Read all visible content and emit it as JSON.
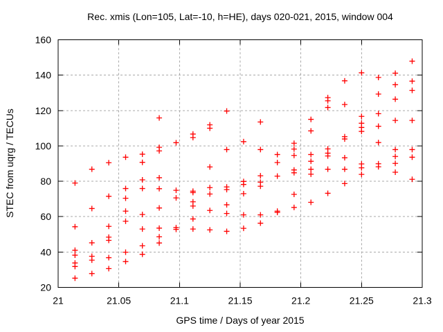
{
  "chart_data": {
    "type": "scatter",
    "title": "Rec. xmis (Lon=105, Lat=-10, h=HE), days 020-021, 2015, window 004",
    "xlabel": "GPS time / Days of year 2015",
    "ylabel": "STEC from uqrg / TECUs",
    "xlim": [
      21.0,
      21.3
    ],
    "ylim": [
      20,
      160
    ],
    "x_ticks": [
      21.0,
      21.05,
      21.1,
      21.15,
      21.2,
      21.25,
      21.3
    ],
    "x_tick_labels": [
      "21",
      "21.05",
      "21.1",
      "21.15",
      "21.2",
      "21.25",
      "21.3"
    ],
    "y_ticks": [
      20,
      40,
      60,
      80,
      100,
      120,
      140,
      160
    ],
    "y_tick_labels": [
      "20",
      "40",
      "60",
      "80",
      "100",
      "120",
      "140",
      "160"
    ],
    "grid": true,
    "legend": "none",
    "marker_shape": "plus",
    "marker_color": "#ff0000",
    "grid_color": "#a8a8a8",
    "border_color": "#000000",
    "points": [
      [
        21.0139,
        79.0
      ],
      [
        21.0139,
        54.3
      ],
      [
        21.0139,
        41.0
      ],
      [
        21.0139,
        38.2
      ],
      [
        21.0139,
        33.8
      ],
      [
        21.0139,
        31.8
      ],
      [
        21.0139,
        25.2
      ],
      [
        21.0278,
        86.8
      ],
      [
        21.0278,
        64.6
      ],
      [
        21.0278,
        45.2
      ],
      [
        21.0278,
        37.6
      ],
      [
        21.0278,
        35.4
      ],
      [
        21.0278,
        27.8
      ],
      [
        21.0417,
        90.5
      ],
      [
        21.0417,
        71.5
      ],
      [
        21.0417,
        54.5
      ],
      [
        21.0417,
        48.4
      ],
      [
        21.0417,
        46.6
      ],
      [
        21.0417,
        36.8
      ],
      [
        21.0417,
        30.6
      ],
      [
        21.0556,
        93.6
      ],
      [
        21.0556,
        75.9
      ],
      [
        21.0556,
        70.4
      ],
      [
        21.0556,
        63.1
      ],
      [
        21.0556,
        57.4
      ],
      [
        21.0556,
        39.9
      ],
      [
        21.0556,
        34.6
      ],
      [
        21.0694,
        95.3
      ],
      [
        21.0694,
        90.7
      ],
      [
        21.0694,
        80.8
      ],
      [
        21.0694,
        75.9
      ],
      [
        21.0694,
        61.2
      ],
      [
        21.0694,
        53.0
      ],
      [
        21.0694,
        43.5
      ],
      [
        21.0694,
        38.7
      ],
      [
        21.0833,
        115.8
      ],
      [
        21.0833,
        99.2
      ],
      [
        21.0833,
        97.2
      ],
      [
        21.0833,
        82.0
      ],
      [
        21.0833,
        75.8
      ],
      [
        21.0833,
        64.9
      ],
      [
        21.0833,
        53.5
      ],
      [
        21.0833,
        48.6
      ],
      [
        21.0833,
        45.1
      ],
      [
        21.0972,
        101.8
      ],
      [
        21.0972,
        74.9
      ],
      [
        21.0972,
        70.6
      ],
      [
        21.0972,
        53.8
      ],
      [
        21.0972,
        52.8
      ],
      [
        21.1111,
        106.7
      ],
      [
        21.1111,
        104.7
      ],
      [
        21.1111,
        74.4
      ],
      [
        21.1111,
        73.6
      ],
      [
        21.1111,
        68.4
      ],
      [
        21.1111,
        66.0
      ],
      [
        21.1111,
        58.7
      ],
      [
        21.1111,
        53.0
      ],
      [
        21.125,
        111.9
      ],
      [
        21.125,
        110.0
      ],
      [
        21.125,
        88.1
      ],
      [
        21.125,
        76.4
      ],
      [
        21.125,
        72.8
      ],
      [
        21.125,
        63.5
      ],
      [
        21.125,
        52.5
      ],
      [
        21.1389,
        119.7
      ],
      [
        21.1389,
        97.9
      ],
      [
        21.1389,
        76.8
      ],
      [
        21.1389,
        75.3
      ],
      [
        21.1389,
        66.7
      ],
      [
        21.1389,
        61.8
      ],
      [
        21.1389,
        51.7
      ],
      [
        21.1528,
        102.4
      ],
      [
        21.1528,
        79.9
      ],
      [
        21.1528,
        78.2
      ],
      [
        21.1528,
        73.0
      ],
      [
        21.1528,
        61.0
      ],
      [
        21.1528,
        53.4
      ],
      [
        21.1667,
        113.5
      ],
      [
        21.1667,
        97.9
      ],
      [
        21.1667,
        83.1
      ],
      [
        21.1667,
        79.5
      ],
      [
        21.1667,
        77.2
      ],
      [
        21.1667,
        61.0
      ],
      [
        21.1667,
        56.3
      ],
      [
        21.1806,
        95.1
      ],
      [
        21.1806,
        90.6
      ],
      [
        21.1806,
        82.9
      ],
      [
        21.1806,
        63.1
      ],
      [
        21.1806,
        62.4
      ],
      [
        21.1944,
        101.5
      ],
      [
        21.1944,
        98.2
      ],
      [
        21.1944,
        94.6
      ],
      [
        21.1944,
        86.4
      ],
      [
        21.1944,
        84.8
      ],
      [
        21.1944,
        72.6
      ],
      [
        21.1944,
        65.2
      ],
      [
        21.2083,
        115.0
      ],
      [
        21.2083,
        108.5
      ],
      [
        21.2083,
        95.1
      ],
      [
        21.2083,
        91.3
      ],
      [
        21.2083,
        86.8
      ],
      [
        21.2083,
        84.0
      ],
      [
        21.2083,
        68.1
      ],
      [
        21.2222,
        127.3
      ],
      [
        21.2222,
        125.5
      ],
      [
        21.2222,
        121.7
      ],
      [
        21.2222,
        98.3
      ],
      [
        21.2222,
        95.9
      ],
      [
        21.2222,
        94.3
      ],
      [
        21.2222,
        86.8
      ],
      [
        21.2222,
        73.2
      ],
      [
        21.2361,
        136.8
      ],
      [
        21.2361,
        123.4
      ],
      [
        21.2361,
        105.2
      ],
      [
        21.2361,
        103.9
      ],
      [
        21.2361,
        93.3
      ],
      [
        21.2361,
        86.8
      ],
      [
        21.2361,
        78.7
      ],
      [
        21.25,
        141.3
      ],
      [
        21.25,
        116.7
      ],
      [
        21.25,
        112.8
      ],
      [
        21.25,
        110.4
      ],
      [
        21.25,
        108.2
      ],
      [
        21.25,
        89.8
      ],
      [
        21.25,
        87.6
      ],
      [
        21.25,
        83.9
      ],
      [
        21.2639,
        138.7
      ],
      [
        21.2639,
        129.3
      ],
      [
        21.2639,
        118.2
      ],
      [
        21.2639,
        111.1
      ],
      [
        21.2639,
        101.9
      ],
      [
        21.2639,
        89.9
      ],
      [
        21.2639,
        88.2
      ],
      [
        21.2778,
        141.1
      ],
      [
        21.2778,
        134.6
      ],
      [
        21.2778,
        126.4
      ],
      [
        21.2778,
        114.4
      ],
      [
        21.2778,
        97.9
      ],
      [
        21.2778,
        94.0
      ],
      [
        21.2778,
        90.1
      ],
      [
        21.2778,
        85.1
      ],
      [
        21.2917,
        147.9
      ],
      [
        21.2917,
        136.6
      ],
      [
        21.2917,
        131.4
      ],
      [
        21.2917,
        114.4
      ],
      [
        21.2917,
        97.9
      ],
      [
        21.2917,
        93.6
      ],
      [
        21.2917,
        81.1
      ]
    ]
  }
}
